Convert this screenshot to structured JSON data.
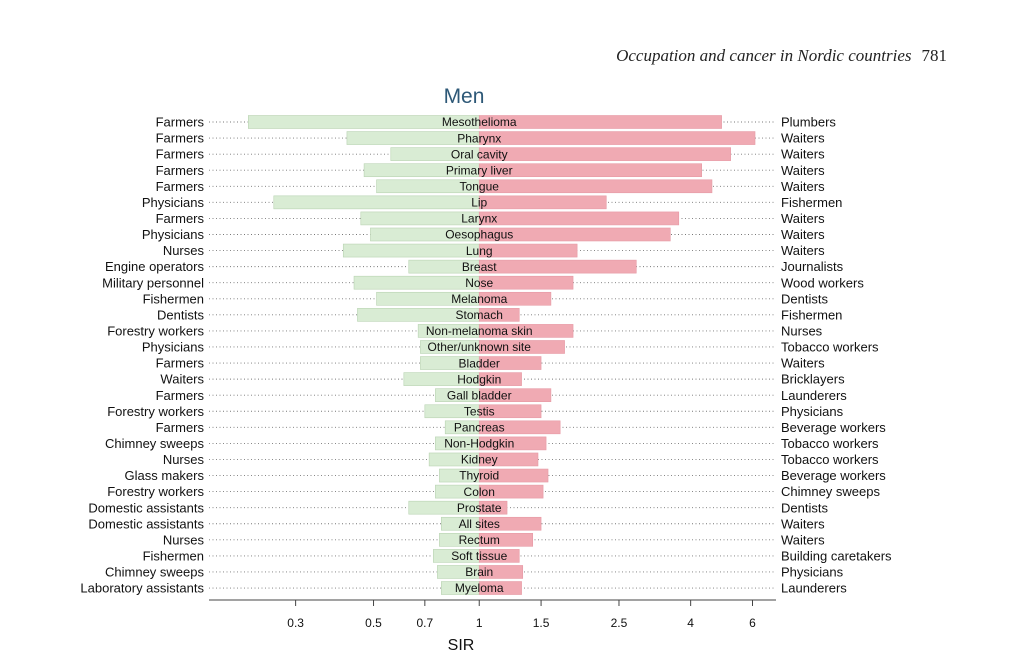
{
  "header": {
    "journal_title": "Occupation and cancer in Nordic countries",
    "page_number": "781"
  },
  "colors": {
    "low_bar": "#d9ecd4",
    "low_bar_stroke": "#b9d3b2",
    "high_bar": "#f0aab3",
    "high_bar_stroke": "#e69aa5",
    "dots": "#777777",
    "axis": "#444444",
    "title": "#2d5877"
  },
  "chart_data": {
    "type": "bar",
    "title": "Men",
    "xlabel": "SIR",
    "ylabel": "",
    "x_scale": "log",
    "xlim": [
      0.17,
      7.0
    ],
    "ticks": [
      {
        "value": 0.3,
        "label": "0.3"
      },
      {
        "value": 0.5,
        "label": "0.5"
      },
      {
        "value": 0.7,
        "label": "0.7"
      },
      {
        "value": 1,
        "label": "1"
      },
      {
        "value": 1.5,
        "label": "1.5"
      },
      {
        "value": 2.5,
        "label": "2.5"
      },
      {
        "value": 4,
        "label": "4"
      },
      {
        "value": 6,
        "label": "6"
      }
    ],
    "rows": [
      {
        "site": "Mesothelioma",
        "low_occupation": "Farmers",
        "low_sir": 0.22,
        "high_occupation": "Plumbers",
        "high_sir": 4.9
      },
      {
        "site": "Pharynx",
        "low_occupation": "Farmers",
        "low_sir": 0.42,
        "high_occupation": "Waiters",
        "high_sir": 6.1
      },
      {
        "site": "Oral cavity",
        "low_occupation": "Farmers",
        "low_sir": 0.56,
        "high_occupation": "Waiters",
        "high_sir": 5.2
      },
      {
        "site": "Primary liver",
        "low_occupation": "Farmers",
        "low_sir": 0.47,
        "high_occupation": "Waiters",
        "high_sir": 4.3
      },
      {
        "site": "Tongue",
        "low_occupation": "Farmers",
        "low_sir": 0.51,
        "high_occupation": "Waiters",
        "high_sir": 4.6
      },
      {
        "site": "Lip",
        "low_occupation": "Physicians",
        "low_sir": 0.26,
        "high_occupation": "Fishermen",
        "high_sir": 2.3
      },
      {
        "site": "Larynx",
        "low_occupation": "Farmers",
        "low_sir": 0.46,
        "high_occupation": "Waiters",
        "high_sir": 3.7
      },
      {
        "site": "Oesophagus",
        "low_occupation": "Physicians",
        "low_sir": 0.49,
        "high_occupation": "Waiters",
        "high_sir": 3.5
      },
      {
        "site": "Lung",
        "low_occupation": "Nurses",
        "low_sir": 0.41,
        "high_occupation": "Waiters",
        "high_sir": 1.9
      },
      {
        "site": "Breast",
        "low_occupation": "Engine operators",
        "low_sir": 0.63,
        "high_occupation": "Journalists",
        "high_sir": 2.8
      },
      {
        "site": "Nose",
        "low_occupation": "Military personnel",
        "low_sir": 0.44,
        "high_occupation": "Wood workers",
        "high_sir": 1.85
      },
      {
        "site": "Melanoma",
        "low_occupation": "Fishermen",
        "low_sir": 0.51,
        "high_occupation": "Dentists",
        "high_sir": 1.6
      },
      {
        "site": "Stomach",
        "low_occupation": "Dentists",
        "low_sir": 0.45,
        "high_occupation": "Fishermen",
        "high_sir": 1.3
      },
      {
        "site": "Non-melanoma skin",
        "low_occupation": "Forestry workers",
        "low_sir": 0.67,
        "high_occupation": "Nurses",
        "high_sir": 1.85
      },
      {
        "site": "Other/unknown site",
        "low_occupation": "Physicians",
        "low_sir": 0.68,
        "high_occupation": "Tobacco workers",
        "high_sir": 1.75
      },
      {
        "site": "Bladder",
        "low_occupation": "Farmers",
        "low_sir": 0.68,
        "high_occupation": "Waiters",
        "high_sir": 1.5
      },
      {
        "site": "Hodgkin",
        "low_occupation": "Waiters",
        "low_sir": 0.61,
        "high_occupation": "Bricklayers",
        "high_sir": 1.32
      },
      {
        "site": "Gall bladder",
        "low_occupation": "Farmers",
        "low_sir": 0.75,
        "high_occupation": "Launderers",
        "high_sir": 1.6
      },
      {
        "site": "Testis",
        "low_occupation": "Forestry workers",
        "low_sir": 0.7,
        "high_occupation": "Physicians",
        "high_sir": 1.5
      },
      {
        "site": "Pancreas",
        "low_occupation": "Farmers",
        "low_sir": 0.8,
        "high_occupation": "Beverage workers",
        "high_sir": 1.7
      },
      {
        "site": "Non-Hodgkin",
        "low_occupation": "Chimney sweeps",
        "low_sir": 0.75,
        "high_occupation": "Tobacco workers",
        "high_sir": 1.55
      },
      {
        "site": "Kidney",
        "low_occupation": "Nurses",
        "low_sir": 0.72,
        "high_occupation": "Tobacco workers",
        "high_sir": 1.47
      },
      {
        "site": "Thyroid",
        "low_occupation": "Glass makers",
        "low_sir": 0.77,
        "high_occupation": "Beverage workers",
        "high_sir": 1.57
      },
      {
        "site": "Colon",
        "low_occupation": "Forestry workers",
        "low_sir": 0.75,
        "high_occupation": "Chimney sweeps",
        "high_sir": 1.52
      },
      {
        "site": "Prostate",
        "low_occupation": "Domestic assistants",
        "low_sir": 0.63,
        "high_occupation": "Dentists",
        "high_sir": 1.2
      },
      {
        "site": "All sites",
        "low_occupation": "Domestic assistants",
        "low_sir": 0.78,
        "high_occupation": "Waiters",
        "high_sir": 1.5
      },
      {
        "site": "Rectum",
        "low_occupation": "Nurses",
        "low_sir": 0.77,
        "high_occupation": "Waiters",
        "high_sir": 1.42
      },
      {
        "site": "Soft tissue",
        "low_occupation": "Fishermen",
        "low_sir": 0.74,
        "high_occupation": "Building caretakers",
        "high_sir": 1.3
      },
      {
        "site": "Brain",
        "low_occupation": "Chimney sweeps",
        "low_sir": 0.76,
        "high_occupation": "Physicians",
        "high_sir": 1.33
      },
      {
        "site": "Myeloma",
        "low_occupation": "Laboratory assistants",
        "low_sir": 0.78,
        "high_occupation": "Launderers",
        "high_sir": 1.32
      }
    ]
  }
}
